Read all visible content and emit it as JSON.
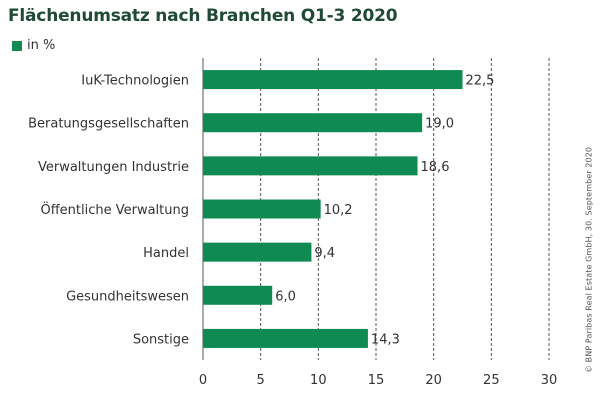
{
  "colors": {
    "bar": "#0f8a52",
    "grid": "#555555",
    "text": "#333333",
    "title": "#1f4a35"
  },
  "credit": "© BNP Paribas Real Estate GmbH, 30. September 2020",
  "chart_data": {
    "type": "bar",
    "orientation": "horizontal",
    "title": "Flächenumsatz nach Branchen Q1-3 2020",
    "legend": {
      "label": "in %",
      "placement": "top-left"
    },
    "categories": [
      "IuK-Technologien",
      "Beratungsgesellschaften",
      "Verwaltungen Industrie",
      "Öffentliche Verwaltung",
      "Handel",
      "Gesundheitswesen",
      "Sonstige"
    ],
    "values": [
      22.5,
      19.0,
      18.6,
      10.2,
      9.4,
      6.0,
      14.3
    ],
    "value_labels": [
      "22,5",
      "19,0",
      "18,6",
      "10,2",
      "9,4",
      "6,0",
      "14,3"
    ],
    "xticks": [
      0,
      5,
      10,
      15,
      20,
      25,
      30
    ],
    "xlim": [
      0,
      30
    ],
    "grid": "vertical-dashed"
  }
}
